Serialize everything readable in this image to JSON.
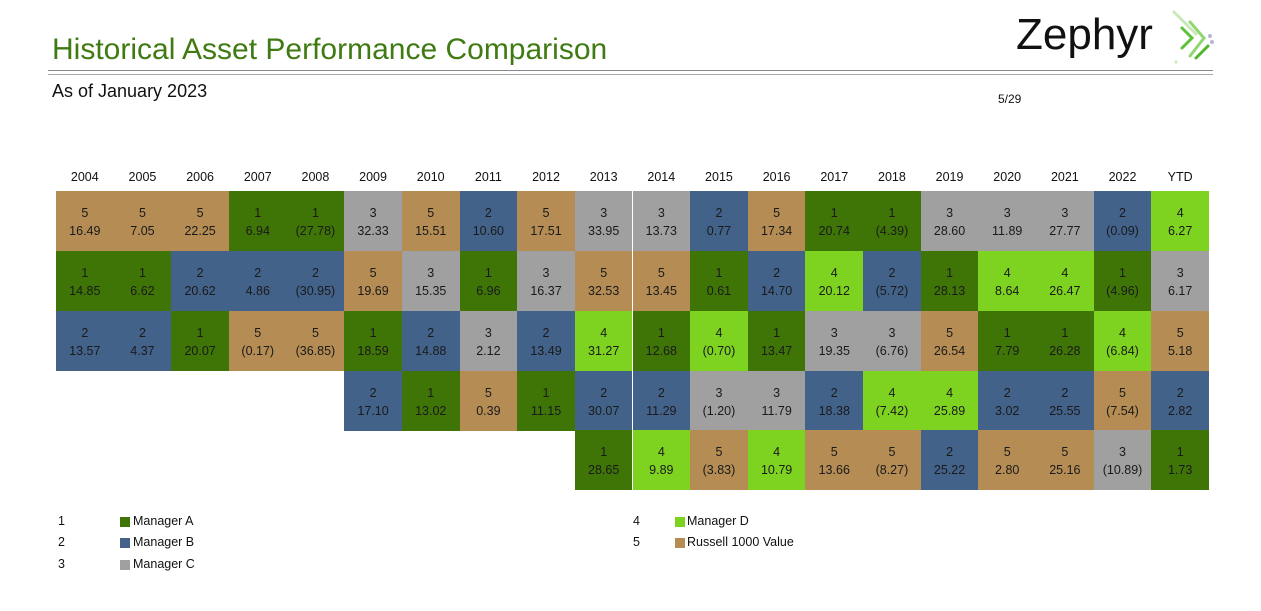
{
  "header": {
    "title": "Historical Asset Performance Comparison",
    "subtitle": "As of January 2023",
    "page": "5/29",
    "logo_text": "Zephyr"
  },
  "colors": {
    "1": "#3f7406",
    "2": "#426289",
    "3": "#a0a0a0",
    "4": "#7ed321",
    "5": "#b48c54"
  },
  "legend": [
    {
      "rank": "1",
      "label": "Manager A"
    },
    {
      "rank": "2",
      "label": "Manager B"
    },
    {
      "rank": "3",
      "label": "Manager C"
    },
    {
      "rank": "4",
      "label": "Manager D"
    },
    {
      "rank": "5",
      "label": "Russell 1000 Value"
    }
  ],
  "chart_data": {
    "type": "table",
    "title": "Historical Asset Performance Comparison",
    "columns": [
      {
        "year": "2004",
        "cells": [
          [
            "5",
            "16.49"
          ],
          [
            "1",
            "14.85"
          ],
          [
            "2",
            "13.57"
          ]
        ]
      },
      {
        "year": "2005",
        "cells": [
          [
            "5",
            "7.05"
          ],
          [
            "1",
            "6.62"
          ],
          [
            "2",
            "4.37"
          ]
        ]
      },
      {
        "year": "2006",
        "cells": [
          [
            "5",
            "22.25"
          ],
          [
            "2",
            "20.62"
          ],
          [
            "1",
            "20.07"
          ]
        ]
      },
      {
        "year": "2007",
        "cells": [
          [
            "1",
            "6.94"
          ],
          [
            "2",
            "4.86"
          ],
          [
            "5",
            "(0.17)"
          ]
        ]
      },
      {
        "year": "2008",
        "cells": [
          [
            "1",
            "(27.78)"
          ],
          [
            "2",
            "(30.95)"
          ],
          [
            "5",
            "(36.85)"
          ]
        ]
      },
      {
        "year": "2009",
        "cells": [
          [
            "3",
            "32.33"
          ],
          [
            "5",
            "19.69"
          ],
          [
            "1",
            "18.59"
          ],
          [
            "2",
            "17.10"
          ]
        ]
      },
      {
        "year": "2010",
        "cells": [
          [
            "5",
            "15.51"
          ],
          [
            "3",
            "15.35"
          ],
          [
            "2",
            "14.88"
          ],
          [
            "1",
            "13.02"
          ]
        ]
      },
      {
        "year": "2011",
        "cells": [
          [
            "2",
            "10.60"
          ],
          [
            "1",
            "6.96"
          ],
          [
            "3",
            "2.12"
          ],
          [
            "5",
            "0.39"
          ]
        ]
      },
      {
        "year": "2012",
        "cells": [
          [
            "5",
            "17.51"
          ],
          [
            "3",
            "16.37"
          ],
          [
            "2",
            "13.49"
          ],
          [
            "1",
            "11.15"
          ]
        ]
      },
      {
        "year": "2013",
        "cells": [
          [
            "3",
            "33.95"
          ],
          [
            "5",
            "32.53"
          ],
          [
            "4",
            "31.27"
          ],
          [
            "2",
            "30.07"
          ],
          [
            "1",
            "28.65"
          ]
        ]
      },
      {
        "year": "2014",
        "cells": [
          [
            "3",
            "13.73"
          ],
          [
            "5",
            "13.45"
          ],
          [
            "1",
            "12.68"
          ],
          [
            "2",
            "11.29"
          ],
          [
            "4",
            "9.89"
          ]
        ]
      },
      {
        "year": "2015",
        "cells": [
          [
            "2",
            "0.77"
          ],
          [
            "1",
            "0.61"
          ],
          [
            "4",
            "(0.70)"
          ],
          [
            "3",
            "(1.20)"
          ],
          [
            "5",
            "(3.83)"
          ]
        ]
      },
      {
        "year": "2016",
        "cells": [
          [
            "5",
            "17.34"
          ],
          [
            "2",
            "14.70"
          ],
          [
            "1",
            "13.47"
          ],
          [
            "3",
            "11.79"
          ],
          [
            "4",
            "10.79"
          ]
        ]
      },
      {
        "year": "2017",
        "cells": [
          [
            "1",
            "20.74"
          ],
          [
            "4",
            "20.12"
          ],
          [
            "3",
            "19.35"
          ],
          [
            "2",
            "18.38"
          ],
          [
            "5",
            "13.66"
          ]
        ]
      },
      {
        "year": "2018",
        "cells": [
          [
            "1",
            "(4.39)"
          ],
          [
            "2",
            "(5.72)"
          ],
          [
            "3",
            "(6.76)"
          ],
          [
            "4",
            "(7.42)"
          ],
          [
            "5",
            "(8.27)"
          ]
        ]
      },
      {
        "year": "2019",
        "cells": [
          [
            "3",
            "28.60"
          ],
          [
            "1",
            "28.13"
          ],
          [
            "5",
            "26.54"
          ],
          [
            "4",
            "25.89"
          ],
          [
            "2",
            "25.22"
          ]
        ]
      },
      {
        "year": "2020",
        "cells": [
          [
            "3",
            "11.89"
          ],
          [
            "4",
            "8.64"
          ],
          [
            "1",
            "7.79"
          ],
          [
            "2",
            "3.02"
          ],
          [
            "5",
            "2.80"
          ]
        ]
      },
      {
        "year": "2021",
        "cells": [
          [
            "3",
            "27.77"
          ],
          [
            "4",
            "26.47"
          ],
          [
            "1",
            "26.28"
          ],
          [
            "2",
            "25.55"
          ],
          [
            "5",
            "25.16"
          ]
        ]
      },
      {
        "year": "2022",
        "cells": [
          [
            "2",
            "(0.09)"
          ],
          [
            "1",
            "(4.96)"
          ],
          [
            "4",
            "(6.84)"
          ],
          [
            "5",
            "(7.54)"
          ],
          [
            "3",
            "(10.89)"
          ]
        ]
      },
      {
        "year": "YTD",
        "cells": [
          [
            "4",
            "6.27"
          ],
          [
            "3",
            "6.17"
          ],
          [
            "5",
            "5.18"
          ],
          [
            "2",
            "2.82"
          ],
          [
            "1",
            "1.73"
          ]
        ]
      }
    ]
  }
}
